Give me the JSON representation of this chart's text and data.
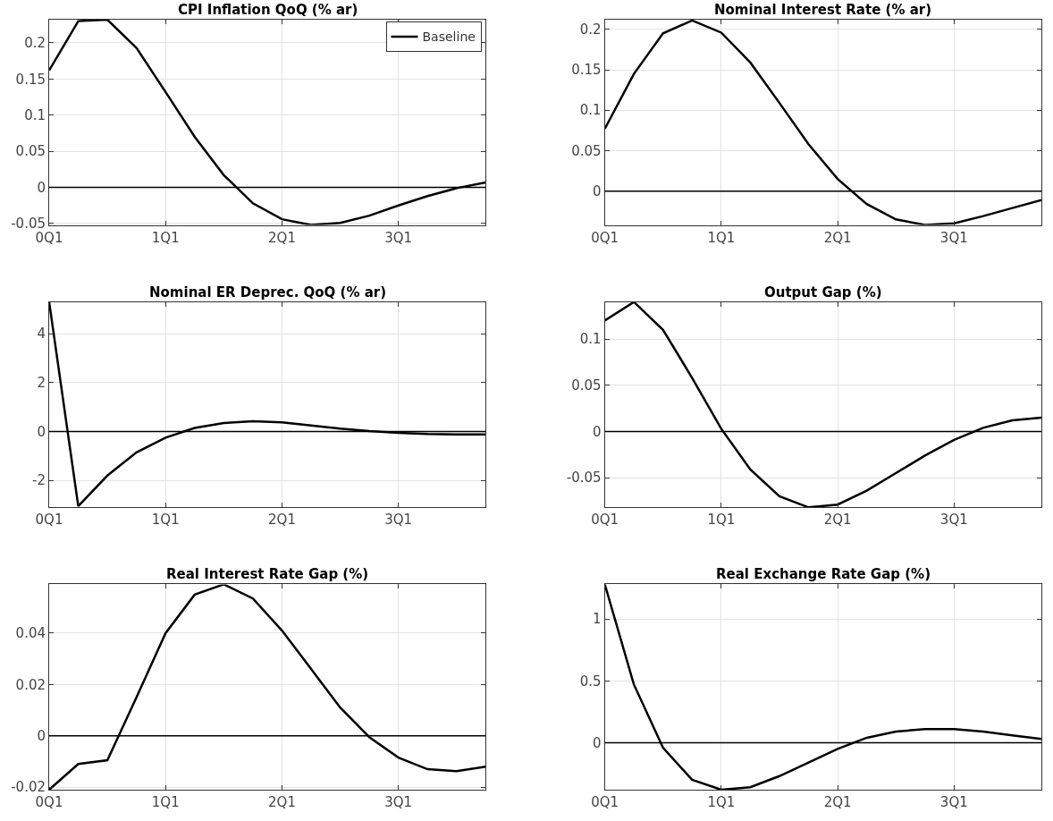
{
  "chart_data": [
    {
      "type": "line",
      "title": "CPI Inflation QoQ (% ar)",
      "categories": [
        "0Q1",
        null,
        null,
        null,
        "1Q1",
        null,
        null,
        null,
        "2Q1",
        null,
        null,
        null,
        "3Q1",
        null,
        null,
        null
      ],
      "ylim": [
        -0.052,
        0.232
      ],
      "yticks": [
        -0.05,
        0,
        0.05,
        0.1,
        0.15,
        0.2
      ],
      "grid": true,
      "legend": "top right",
      "ref_lines": [
        {
          "axis": "y",
          "value": 0,
          "color": "#000000"
        }
      ],
      "series": [
        {
          "name": "Baseline",
          "color": "#000000",
          "values": [
            0.162,
            0.23,
            0.232,
            0.193,
            0.132,
            0.07,
            0.017,
            -0.022,
            -0.044,
            -0.052,
            -0.049,
            -0.039,
            -0.025,
            -0.012,
            -0.001,
            0.007
          ]
        }
      ]
    },
    {
      "type": "line",
      "title": "Nominal Interest Rate (% ar)",
      "categories": [
        "0Q1",
        null,
        null,
        null,
        "1Q1",
        null,
        null,
        null,
        "2Q1",
        null,
        null,
        null,
        "3Q1",
        null,
        null,
        null
      ],
      "ylim": [
        -0.042,
        0.212
      ],
      "yticks": [
        0,
        0.05,
        0.1,
        0.15,
        0.2
      ],
      "grid": true,
      "ref_lines": [
        {
          "axis": "y",
          "value": 0,
          "color": "#000000"
        }
      ],
      "series": [
        {
          "color": "#000000",
          "values": [
            0.077,
            0.145,
            0.195,
            0.211,
            0.196,
            0.159,
            0.109,
            0.058,
            0.015,
            -0.016,
            -0.035,
            -0.042,
            -0.04,
            -0.031,
            -0.021,
            -0.011
          ]
        }
      ]
    },
    {
      "type": "line",
      "title": "Nominal ER Deprec. QoQ (% ar)",
      "categories": [
        "0Q1",
        null,
        null,
        null,
        "1Q1",
        null,
        null,
        null,
        "2Q1",
        null,
        null,
        null,
        "3Q1",
        null,
        null,
        null
      ],
      "ylim": [
        -3.1,
        5.3
      ],
      "yticks": [
        -2,
        0,
        2,
        4
      ],
      "grid": true,
      "ref_lines": [
        {
          "axis": "y",
          "value": 0,
          "color": "#000000"
        }
      ],
      "series": [
        {
          "color": "#000000",
          "values": [
            5.3,
            -3.05,
            -1.8,
            -0.85,
            -0.25,
            0.15,
            0.35,
            0.42,
            0.38,
            0.25,
            0.12,
            0.02,
            -0.05,
            -0.1,
            -0.12,
            -0.12
          ]
        }
      ]
    },
    {
      "type": "line",
      "title": "Output Gap (%)",
      "categories": [
        "0Q1",
        null,
        null,
        null,
        "1Q1",
        null,
        null,
        null,
        "2Q1",
        null,
        null,
        null,
        "3Q1",
        null,
        null,
        null
      ],
      "ylim": [
        -0.082,
        0.14
      ],
      "yticks": [
        -0.05,
        0,
        0.05,
        0.1
      ],
      "grid": true,
      "ref_lines": [
        {
          "axis": "y",
          "value": 0,
          "color": "#000000"
        }
      ],
      "series": [
        {
          "color": "#000000",
          "values": [
            0.12,
            0.14,
            0.11,
            0.058,
            0.003,
            -0.041,
            -0.07,
            -0.082,
            -0.079,
            -0.064,
            -0.045,
            -0.026,
            -0.009,
            0.004,
            0.012,
            0.015
          ]
        }
      ]
    },
    {
      "type": "line",
      "title": "Real Interest Rate Gap (%)",
      "categories": [
        "0Q1",
        null,
        null,
        null,
        "1Q1",
        null,
        null,
        null,
        "2Q1",
        null,
        null,
        null,
        "3Q1",
        null,
        null,
        null
      ],
      "ylim": [
        -0.021,
        0.059
      ],
      "yticks": [
        -0.02,
        0,
        0.02,
        0.04
      ],
      "grid": true,
      "ref_lines": [
        {
          "axis": "y",
          "value": 0,
          "color": "#000000"
        }
      ],
      "series": [
        {
          "color": "#000000",
          "values": [
            -0.021,
            -0.011,
            -0.0095,
            0.015,
            0.04,
            0.055,
            0.059,
            0.0535,
            0.041,
            0.026,
            0.011,
            -0.0005,
            -0.0085,
            -0.013,
            -0.0138,
            -0.012
          ]
        }
      ]
    },
    {
      "type": "line",
      "title": "Real Exchange Rate Gap (%)",
      "categories": [
        "0Q1",
        null,
        null,
        null,
        "1Q1",
        null,
        null,
        null,
        "2Q1",
        null,
        null,
        null,
        "3Q1",
        null,
        null,
        null
      ],
      "ylim": [
        -0.38,
        1.28
      ],
      "yticks": [
        0,
        0.5,
        1
      ],
      "grid": true,
      "ref_lines": [
        {
          "axis": "y",
          "value": 0,
          "color": "#000000"
        }
      ],
      "series": [
        {
          "color": "#000000",
          "values": [
            1.28,
            0.47,
            -0.04,
            -0.3,
            -0.38,
            -0.36,
            -0.27,
            -0.16,
            -0.05,
            0.04,
            0.09,
            0.11,
            0.11,
            0.09,
            0.06,
            0.03
          ]
        }
      ]
    }
  ]
}
